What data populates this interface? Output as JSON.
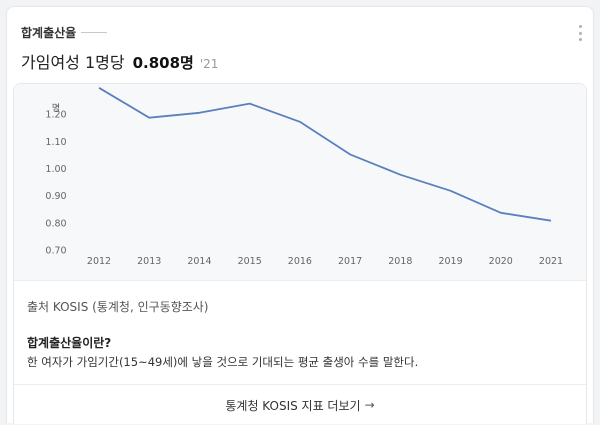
{
  "card": {
    "title": "합계출산율",
    "headline": {
      "label": "가임여성 1명당",
      "value": "0.808명",
      "year": "'21"
    },
    "more_icon": "more-vertical-icon"
  },
  "chart_data": {
    "type": "line",
    "x": [
      "2012",
      "2013",
      "2014",
      "2015",
      "2016",
      "2017",
      "2018",
      "2019",
      "2020",
      "2021"
    ],
    "series": [
      {
        "values": [
          1.297,
          1.187,
          1.205,
          1.239,
          1.172,
          1.052,
          0.977,
          0.918,
          0.837,
          0.808
        ],
        "color": "#5b7fbf"
      }
    ],
    "ylabel": "명",
    "yticks": [
      "1.20",
      "1.10",
      "1.00",
      "0.90",
      "0.80",
      "0.70"
    ],
    "ytick_values": [
      1.2,
      1.1,
      1.0,
      0.9,
      0.8,
      0.7
    ],
    "ylim": [
      0.7,
      1.3
    ],
    "grid": false
  },
  "source": {
    "text": "출처 KOSIS (통계청, 인구동향조사)"
  },
  "definition": {
    "title": "합계출산율이란?",
    "text": "한 여자가 가임기간(15~49세)에 낳을 것으로 기대되는 평균 출생아 수를 말한다."
  },
  "footer": {
    "link_label": "통계청 KOSIS 지표 더보기",
    "arrow": "→"
  }
}
